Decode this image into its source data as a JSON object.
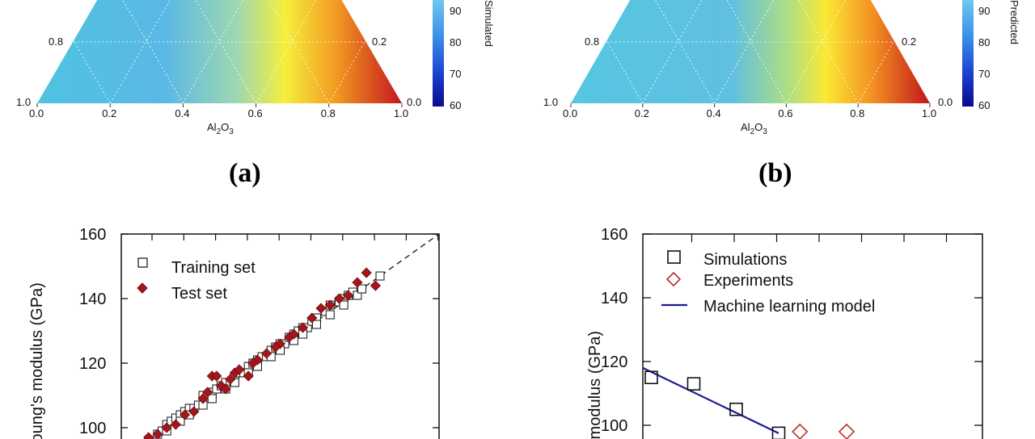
{
  "chart_data": [
    {
      "id": "a",
      "type": "heatmap",
      "subtype": "ternary",
      "panel_label": "(a)",
      "xlabel": "Al2O3",
      "x_ticks": [
        "0.0",
        "0.2",
        "0.4",
        "0.6",
        "0.8",
        "1.0"
      ],
      "left_ticks": [
        "0.8",
        "1.0"
      ],
      "right_ticks": [
        "0.2",
        "0.0"
      ],
      "colorbar": {
        "label": "Simulated",
        "ticks": [
          "90",
          "80",
          "70",
          "60"
        ],
        "range": [
          60,
          100
        ]
      }
    },
    {
      "id": "b",
      "type": "heatmap",
      "subtype": "ternary",
      "panel_label": "(b)",
      "xlabel": "Al2O3",
      "x_ticks": [
        "0.0",
        "0.2",
        "0.4",
        "0.6",
        "0.8",
        "1.0"
      ],
      "left_ticks": [
        "0.8",
        "1.0"
      ],
      "right_ticks": [
        "0.2",
        "0.0"
      ],
      "colorbar": {
        "label": "Predicted",
        "ticks": [
          "90",
          "80",
          "70",
          "60"
        ],
        "range": [
          60,
          100
        ]
      }
    },
    {
      "id": "c",
      "type": "scatter",
      "ylabel": "Young's modulus (GPa)",
      "y_ticks": [
        100,
        120,
        140,
        160
      ],
      "xlim": [
        90,
        160
      ],
      "ylim": [
        95,
        160
      ],
      "series": [
        {
          "name": "Training set",
          "marker": "open-square",
          "points": [
            [
              96,
              96
            ],
            [
              98,
              98
            ],
            [
              99,
              99
            ],
            [
              100,
              101
            ],
            [
              101,
              102
            ],
            [
              102,
              103
            ],
            [
              103,
              104
            ],
            [
              104,
              105
            ],
            [
              105,
              106
            ],
            [
              106,
              106
            ],
            [
              107,
              107
            ],
            [
              108,
              110
            ],
            [
              109,
              110
            ],
            [
              110,
              111
            ],
            [
              111,
              112
            ],
            [
              112,
              113
            ],
            [
              113,
              114
            ],
            [
              114,
              114
            ],
            [
              115,
              116
            ],
            [
              116,
              117
            ],
            [
              117,
              117
            ],
            [
              118,
              119
            ],
            [
              119,
              120
            ],
            [
              120,
              121
            ],
            [
              121,
              122
            ],
            [
              122,
              122
            ],
            [
              123,
              124
            ],
            [
              124,
              125
            ],
            [
              125,
              126
            ],
            [
              126,
              126
            ],
            [
              127,
              128
            ],
            [
              128,
              129
            ],
            [
              129,
              130
            ],
            [
              130,
              131
            ],
            [
              131,
              131
            ],
            [
              132,
              133
            ],
            [
              133,
              134
            ],
            [
              135,
              136
            ],
            [
              136,
              138
            ],
            [
              138,
              139
            ],
            [
              139,
              140
            ],
            [
              140,
              141
            ],
            [
              141,
              142
            ],
            [
              142,
              141
            ],
            [
              143,
              143
            ],
            [
              147,
              147
            ],
            [
              100,
              99
            ],
            [
              103,
              102
            ],
            [
              105,
              104
            ],
            [
              108,
              107
            ],
            [
              110,
              109
            ],
            [
              113,
              112
            ],
            [
              115,
              114
            ],
            [
              118,
              117
            ],
            [
              120,
              119
            ],
            [
              123,
              122
            ],
            [
              125,
              124
            ],
            [
              128,
              127
            ],
            [
              130,
              129
            ],
            [
              133,
              132
            ],
            [
              136,
              135
            ],
            [
              139,
              138
            ]
          ]
        },
        {
          "name": "Test set",
          "marker": "filled-diamond",
          "points": [
            [
              96,
              97
            ],
            [
              98,
              98
            ],
            [
              100,
              100
            ],
            [
              102,
              101
            ],
            [
              104,
              104
            ],
            [
              106,
              105
            ],
            [
              108,
              109
            ],
            [
              109,
              111
            ],
            [
              110,
              116
            ],
            [
              111,
              116
            ],
            [
              112,
              113
            ],
            [
              113,
              112
            ],
            [
              114,
              115
            ],
            [
              115,
              117
            ],
            [
              116,
              118
            ],
            [
              118,
              116
            ],
            [
              120,
              121
            ],
            [
              122,
              123
            ],
            [
              125,
              126
            ],
            [
              127,
              128
            ],
            [
              130,
              131
            ],
            [
              132,
              134
            ],
            [
              134,
              137
            ],
            [
              136,
              138
            ],
            [
              138,
              140
            ],
            [
              140,
              141
            ],
            [
              142,
              145
            ],
            [
              144,
              148
            ],
            [
              146,
              144
            ],
            [
              128,
              129
            ],
            [
              124,
              125
            ],
            [
              119,
              120
            ]
          ]
        }
      ],
      "reference_line": "y = x (dashed)"
    },
    {
      "id": "d",
      "type": "scatter",
      "ylabel": "s modulus (GPa)",
      "y_ticks": [
        100,
        120,
        140,
        160
      ],
      "xlim": [
        0,
        8
      ],
      "ylim": [
        95,
        160
      ],
      "series": [
        {
          "name": "Simulations",
          "marker": "open-square",
          "points": [
            [
              0.2,
              115
            ],
            [
              1.2,
              113
            ],
            [
              2.2,
              105
            ],
            [
              3.2,
              97.5
            ]
          ]
        },
        {
          "name": "Experiments",
          "marker": "open-diamond",
          "points": [
            [
              3.7,
              98
            ],
            [
              4.8,
              98
            ]
          ]
        },
        {
          "name": "Machine learning model",
          "marker": "line",
          "points": [
            [
              0,
              118
            ],
            [
              3.2,
              97.5
            ]
          ]
        }
      ]
    }
  ]
}
